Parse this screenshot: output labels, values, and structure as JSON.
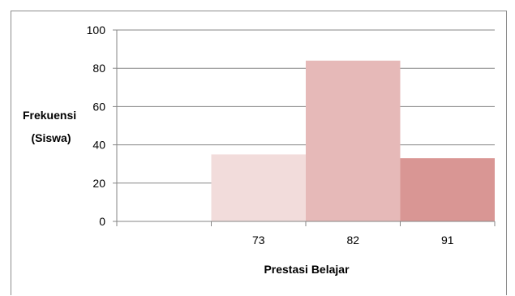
{
  "chart_data": {
    "type": "bar",
    "categories": [
      "",
      "73",
      "82",
      "91"
    ],
    "values": [
      0,
      35,
      84,
      33
    ],
    "colors": [
      "#f2dcdb",
      "#f2dcdb",
      "#e6b9b8",
      "#d99694"
    ],
    "xlabel": "Prestasi Belajar",
    "ylabel_lines": [
      "Frekuensi",
      "(Siswa)"
    ],
    "ylim": [
      0,
      100
    ],
    "yticks": [
      0,
      20,
      40,
      60,
      80,
      100
    ],
    "grid": true,
    "gridline_color": "#868686",
    "legend": "none"
  }
}
